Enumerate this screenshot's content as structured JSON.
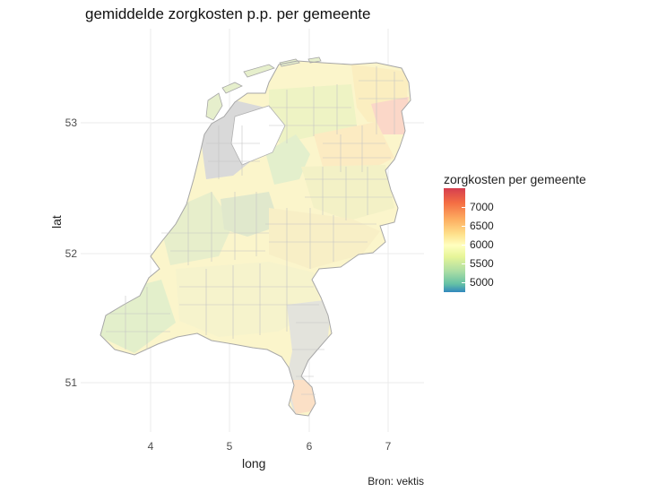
{
  "title": "gemiddelde zorgkosten p.p. per gemeente",
  "caption": "Bron: vektis",
  "axes": {
    "xlabel": "long",
    "ylabel": "lat",
    "xticks": [
      "4",
      "5",
      "6",
      "7"
    ],
    "yticks": [
      "53",
      "52",
      "51"
    ]
  },
  "legend": {
    "title": "zorgkosten per gemeente",
    "ticks": [
      "7000",
      "6500",
      "6000",
      "5500",
      "5000"
    ],
    "colors": [
      "#d53e4f",
      "#fdae61",
      "#ffffbf",
      "#abdda4",
      "#3288bd"
    ]
  },
  "chart_data": {
    "type": "choropleth",
    "title": "gemiddelde zorgkosten p.p. per gemeente",
    "xlabel": "long",
    "ylabel": "lat",
    "xlim": [
      3.3,
      7.4
    ],
    "ylim": [
      50.7,
      53.6
    ],
    "xticks": [
      4,
      5,
      6,
      7
    ],
    "yticks": [
      51,
      52,
      53
    ],
    "fill_scale": {
      "name": "zorgkosten per gemeente",
      "min": 4850,
      "max": 7400,
      "breaks": [
        5000,
        5500,
        6000,
        6500,
        7000
      ],
      "palette": "Spectral"
    },
    "missing_color": "#d9d9d9",
    "caption": "Bron: vektis",
    "legend_position": "right",
    "grid": true
  }
}
